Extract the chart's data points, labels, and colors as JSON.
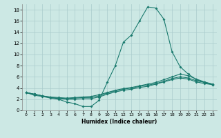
{
  "title": "",
  "xlabel": "Humidex (Indice chaleur)",
  "bg_color": "#cce8e4",
  "grid_color": "#aacccc",
  "line_color": "#1a7a6e",
  "xlim": [
    -0.5,
    23.5
  ],
  "ylim": [
    0,
    19
  ],
  "xticks": [
    0,
    1,
    2,
    3,
    4,
    5,
    6,
    7,
    8,
    9,
    10,
    11,
    12,
    13,
    14,
    15,
    16,
    17,
    18,
    19,
    20,
    21,
    22,
    23
  ],
  "yticks": [
    0,
    2,
    4,
    6,
    8,
    10,
    12,
    14,
    16,
    18
  ],
  "line1_x": [
    0,
    1,
    2,
    3,
    4,
    5,
    6,
    7,
    8,
    9,
    10,
    11,
    12,
    13,
    14,
    15,
    16,
    17,
    18,
    19,
    20,
    21,
    22,
    23
  ],
  "line1_y": [
    3.2,
    2.7,
    2.5,
    2.2,
    2.0,
    1.5,
    1.2,
    0.7,
    0.7,
    1.8,
    5.0,
    8.0,
    12.2,
    13.5,
    16.0,
    18.5,
    18.3,
    16.3,
    10.5,
    7.8,
    6.5,
    5.5,
    5.0,
    4.6
  ],
  "line2_x": [
    0,
    1,
    2,
    3,
    4,
    5,
    6,
    7,
    8,
    9,
    10,
    11,
    12,
    13,
    14,
    15,
    16,
    17,
    18,
    19,
    20,
    21,
    22,
    23
  ],
  "line2_y": [
    3.2,
    2.9,
    2.6,
    2.4,
    2.3,
    2.2,
    2.3,
    2.4,
    2.5,
    2.8,
    3.2,
    3.6,
    3.9,
    4.1,
    4.4,
    4.7,
    5.0,
    5.5,
    6.0,
    6.5,
    6.2,
    5.6,
    5.1,
    4.7
  ],
  "line3_x": [
    0,
    1,
    2,
    3,
    4,
    5,
    6,
    7,
    8,
    9,
    10,
    11,
    12,
    13,
    14,
    15,
    16,
    17,
    18,
    19,
    20,
    21,
    22,
    23
  ],
  "line3_y": [
    3.2,
    2.9,
    2.6,
    2.3,
    2.1,
    2.0,
    2.0,
    2.1,
    2.1,
    2.4,
    2.9,
    3.3,
    3.6,
    3.8,
    4.1,
    4.3,
    4.7,
    5.1,
    5.5,
    5.8,
    5.6,
    5.1,
    4.8,
    4.6
  ],
  "line4_x": [
    0,
    1,
    2,
    3,
    4,
    5,
    6,
    7,
    8,
    9,
    10,
    11,
    12,
    13,
    14,
    15,
    16,
    17,
    18,
    19,
    20,
    21,
    22,
    23
  ],
  "line4_y": [
    3.2,
    2.9,
    2.6,
    2.3,
    2.2,
    2.1,
    2.2,
    2.3,
    2.3,
    2.6,
    3.1,
    3.5,
    3.8,
    4.0,
    4.3,
    4.5,
    4.8,
    5.2,
    5.7,
    6.0,
    5.8,
    5.3,
    5.0,
    4.7
  ]
}
